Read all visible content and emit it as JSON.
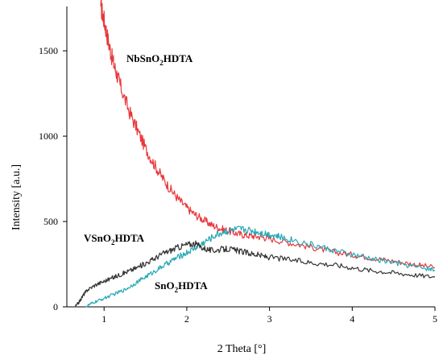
{
  "chart_data": {
    "type": "line",
    "xlabel": "2 Theta [°]",
    "ylabel": "Intensity [a.u.]",
    "xlim": [
      0.55,
      5.0
    ],
    "ylim": [
      0,
      1760
    ],
    "xticks": [
      1,
      2,
      3,
      4,
      5
    ],
    "yticks": [
      0,
      500,
      1000,
      1500
    ],
    "grid": false,
    "legend": "none",
    "series": [
      {
        "name": "NbSnO₂HDTA",
        "label_parts": {
          "pre": "NbSnO",
          "sub": "2",
          "post": "HDTA"
        },
        "color": "#e8373b",
        "x": [
          0.96,
          1.0,
          1.05,
          1.1,
          1.15,
          1.2,
          1.3,
          1.4,
          1.5,
          1.6,
          1.7,
          1.8,
          1.9,
          2.0,
          2.1,
          2.2,
          2.3,
          2.4,
          2.5,
          2.6,
          2.7,
          2.8,
          2.9,
          3.0,
          3.2,
          3.4,
          3.6,
          3.8,
          4.0,
          4.2,
          4.4,
          4.6,
          4.8,
          5.0
        ],
        "y": [
          1760,
          1680,
          1560,
          1450,
          1370,
          1290,
          1150,
          1040,
          930,
          840,
          760,
          690,
          630,
          580,
          540,
          510,
          480,
          460,
          445,
          430,
          420,
          415,
          410,
          400,
          380,
          360,
          340,
          320,
          305,
          290,
          275,
          260,
          245,
          230
        ]
      },
      {
        "name": "VSnO₂HDTA",
        "label_parts": {
          "pre": "VSnO",
          "sub": "2",
          "post": "HDTA"
        },
        "color": "#26a9b6",
        "x": [
          0.78,
          0.85,
          0.95,
          1.05,
          1.15,
          1.25,
          1.35,
          1.45,
          1.55,
          1.65,
          1.75,
          1.85,
          1.95,
          2.05,
          2.15,
          2.25,
          2.35,
          2.45,
          2.55,
          2.65,
          2.75,
          2.85,
          2.95,
          3.05,
          3.15,
          3.3,
          3.5,
          3.7,
          3.9,
          4.1,
          4.3,
          4.5,
          4.7,
          4.9,
          5.0
        ],
        "y": [
          0,
          20,
          40,
          60,
          80,
          100,
          130,
          160,
          190,
          220,
          250,
          280,
          305,
          330,
          360,
          390,
          420,
          440,
          450,
          455,
          450,
          440,
          430,
          420,
          405,
          390,
          365,
          340,
          315,
          295,
          275,
          260,
          240,
          225,
          215
        ]
      },
      {
        "name": "SnO₂HDTA",
        "label_parts": {
          "pre": "SnO",
          "sub": "2",
          "post": "HDTA"
        },
        "color": "#333333",
        "x": [
          0.65,
          0.7,
          0.75,
          0.8,
          0.9,
          1.0,
          1.1,
          1.2,
          1.3,
          1.4,
          1.5,
          1.6,
          1.7,
          1.8,
          1.9,
          2.0,
          2.1,
          2.2,
          2.3,
          2.4,
          2.5,
          2.6,
          2.7,
          2.8,
          2.9,
          3.0,
          3.2,
          3.4,
          3.6,
          3.8,
          4.0,
          4.2,
          4.4,
          4.6,
          4.8,
          5.0
        ],
        "y": [
          0,
          30,
          70,
          100,
          130,
          150,
          170,
          190,
          210,
          230,
          255,
          280,
          310,
          330,
          350,
          365,
          370,
          345,
          330,
          335,
          340,
          330,
          320,
          310,
          300,
          290,
          280,
          265,
          255,
          245,
          230,
          215,
          205,
          195,
          185,
          175
        ]
      }
    ]
  }
}
